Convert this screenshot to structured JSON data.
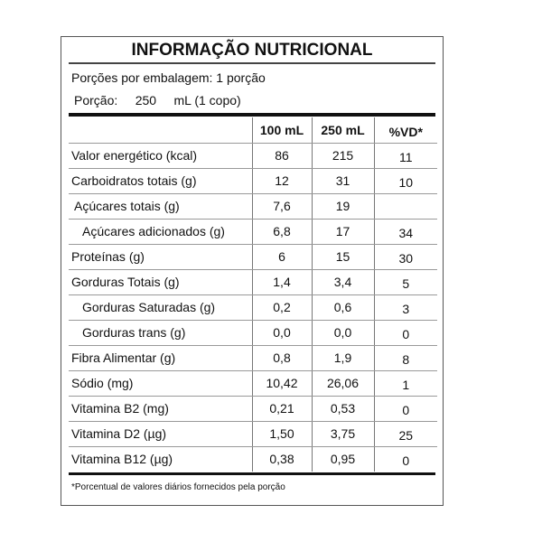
{
  "title": "INFORMAÇÃO NUTRICIONAL",
  "servings_per_package": "Porções por embalagem: 1 porção",
  "portion": {
    "label": "Porção:",
    "amount": "250",
    "unit": "mL (1 copo)"
  },
  "columns": [
    "",
    "100 mL",
    "250 mL",
    "%VD*"
  ],
  "rows": [
    {
      "name": "Valor energético (kcal)",
      "v100": "86",
      "v250": "215",
      "vd": "11",
      "indent": 0
    },
    {
      "name": "Carboidratos totais (g)",
      "v100": "12",
      "v250": "31",
      "vd": "10",
      "indent": 0
    },
    {
      "name": "Açúcares totais (g)",
      "v100": "7,6",
      "v250": "19",
      "vd": "",
      "indent": 1
    },
    {
      "name": "Açúcares adicionados (g)",
      "v100": "6,8",
      "v250": "17",
      "vd": "34",
      "indent": 2
    },
    {
      "name": "Proteínas (g)",
      "v100": "6",
      "v250": "15",
      "vd": "30",
      "indent": 0
    },
    {
      "name": "Gorduras Totais (g)",
      "v100": "1,4",
      "v250": "3,4",
      "vd": "5",
      "indent": 0
    },
    {
      "name": "Gorduras Saturadas (g)",
      "v100": "0,2",
      "v250": "0,6",
      "vd": "3",
      "indent": 2
    },
    {
      "name": "Gorduras trans (g)",
      "v100": "0,0",
      "v250": "0,0",
      "vd": "0",
      "indent": 2
    },
    {
      "name": "Fibra Alimentar (g)",
      "v100": "0,8",
      "v250": "1,9",
      "vd": "8",
      "indent": 0
    },
    {
      "name": "Sódio (mg)",
      "v100": "10,42",
      "v250": "26,06",
      "vd": "1",
      "indent": 0
    },
    {
      "name": "Vitamina B2 (mg)",
      "v100": "0,21",
      "v250": "0,53",
      "vd": "0",
      "indent": 0
    },
    {
      "name": "Vitamina D2 (µg)",
      "v100": "1,50",
      "v250": "3,75",
      "vd": "25",
      "indent": 0
    },
    {
      "name": "Vitamina B12 (µg)",
      "v100": "0,38",
      "v250": "0,95",
      "vd": "0",
      "indent": 0
    }
  ],
  "footnote": "*Porcentual de valores diários fornecidos pela porção"
}
